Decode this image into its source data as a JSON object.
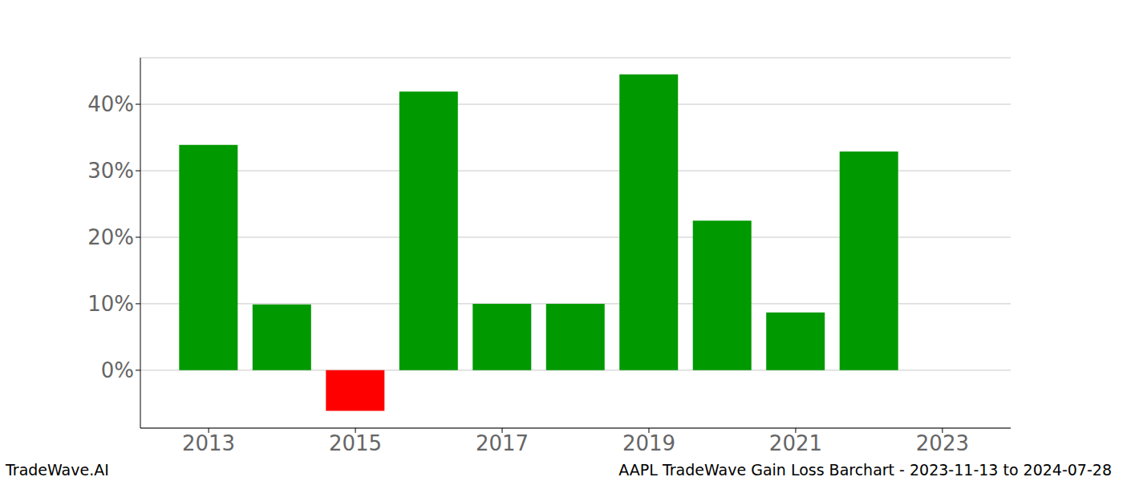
{
  "chart_data": {
    "type": "bar",
    "title": "AAPL TradeWave Gain Loss Barchart - 2023-11-13 to 2024-07-28",
    "annotations": [
      "TradeWave.AI"
    ],
    "x": [
      2013,
      2014,
      2015,
      2016,
      2017,
      2018,
      2019,
      2020,
      2021,
      2022
    ],
    "values": [
      33.9,
      9.9,
      -6.1,
      41.9,
      10.0,
      10.0,
      44.5,
      22.5,
      8.7,
      32.9
    ],
    "colors": [
      "#009900",
      "#009900",
      "#ff0000",
      "#009900",
      "#009900",
      "#009900",
      "#009900",
      "#009900",
      "#009900",
      "#009900"
    ],
    "xlim": [
      2012.07,
      2023.93
    ],
    "xticks": [
      2013,
      2015,
      2017,
      2019,
      2021,
      2023
    ],
    "ylim": [
      -8.7,
      47
    ],
    "yticks": [
      {
        "value": 0,
        "label": "0%"
      },
      {
        "value": 10,
        "label": "10%"
      },
      {
        "value": 20,
        "label": "20%"
      },
      {
        "value": 30,
        "label": "30%"
      },
      {
        "value": 40,
        "label": "40%"
      }
    ],
    "grid": true
  }
}
